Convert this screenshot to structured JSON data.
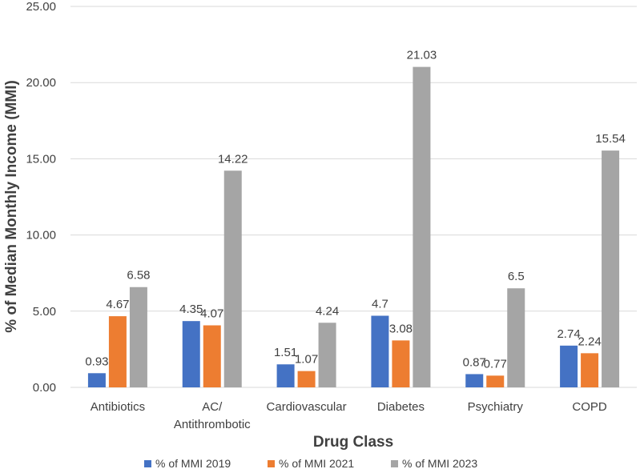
{
  "chart_data": {
    "type": "bar",
    "title": "",
    "xlabel": "Drug Class",
    "ylabel": "% of Median Monthly Income (MMI)",
    "ylim": [
      0,
      25
    ],
    "yticks": [
      "0.00",
      "5.00",
      "10.00",
      "15.00",
      "20.00",
      "25.00"
    ],
    "ytick_values": [
      0,
      5,
      10,
      15,
      20,
      25
    ],
    "grid": true,
    "legend_position": "bottom",
    "categories": [
      [
        "Antibiotics"
      ],
      [
        "AC/",
        "Antithrombotic"
      ],
      [
        "Cardiovascular"
      ],
      [
        "Diabetes"
      ],
      [
        "Psychiatry"
      ],
      [
        "COPD"
      ]
    ],
    "series": [
      {
        "name": "% of MMI 2019",
        "color": "#4472c4",
        "values": [
          0.93,
          4.35,
          1.51,
          4.7,
          0.87,
          2.74
        ],
        "labels": [
          "0.93",
          "4.35",
          "1.51",
          "4.7",
          "0.87",
          "2.74"
        ]
      },
      {
        "name": "% of MMI 2021",
        "color": "#ed7d31",
        "values": [
          4.67,
          4.07,
          1.07,
          3.08,
          0.77,
          2.24
        ],
        "labels": [
          "4.67",
          "4.07",
          "1.07",
          "3.08",
          "0.77",
          "2.24"
        ]
      },
      {
        "name": "% of MMI 2023",
        "color": "#a5a5a5",
        "values": [
          6.58,
          14.22,
          4.24,
          21.03,
          6.5,
          15.54
        ],
        "labels": [
          "6.58",
          "14.22",
          "4.24",
          "21.03",
          "6.5",
          "15.54"
        ]
      }
    ]
  }
}
